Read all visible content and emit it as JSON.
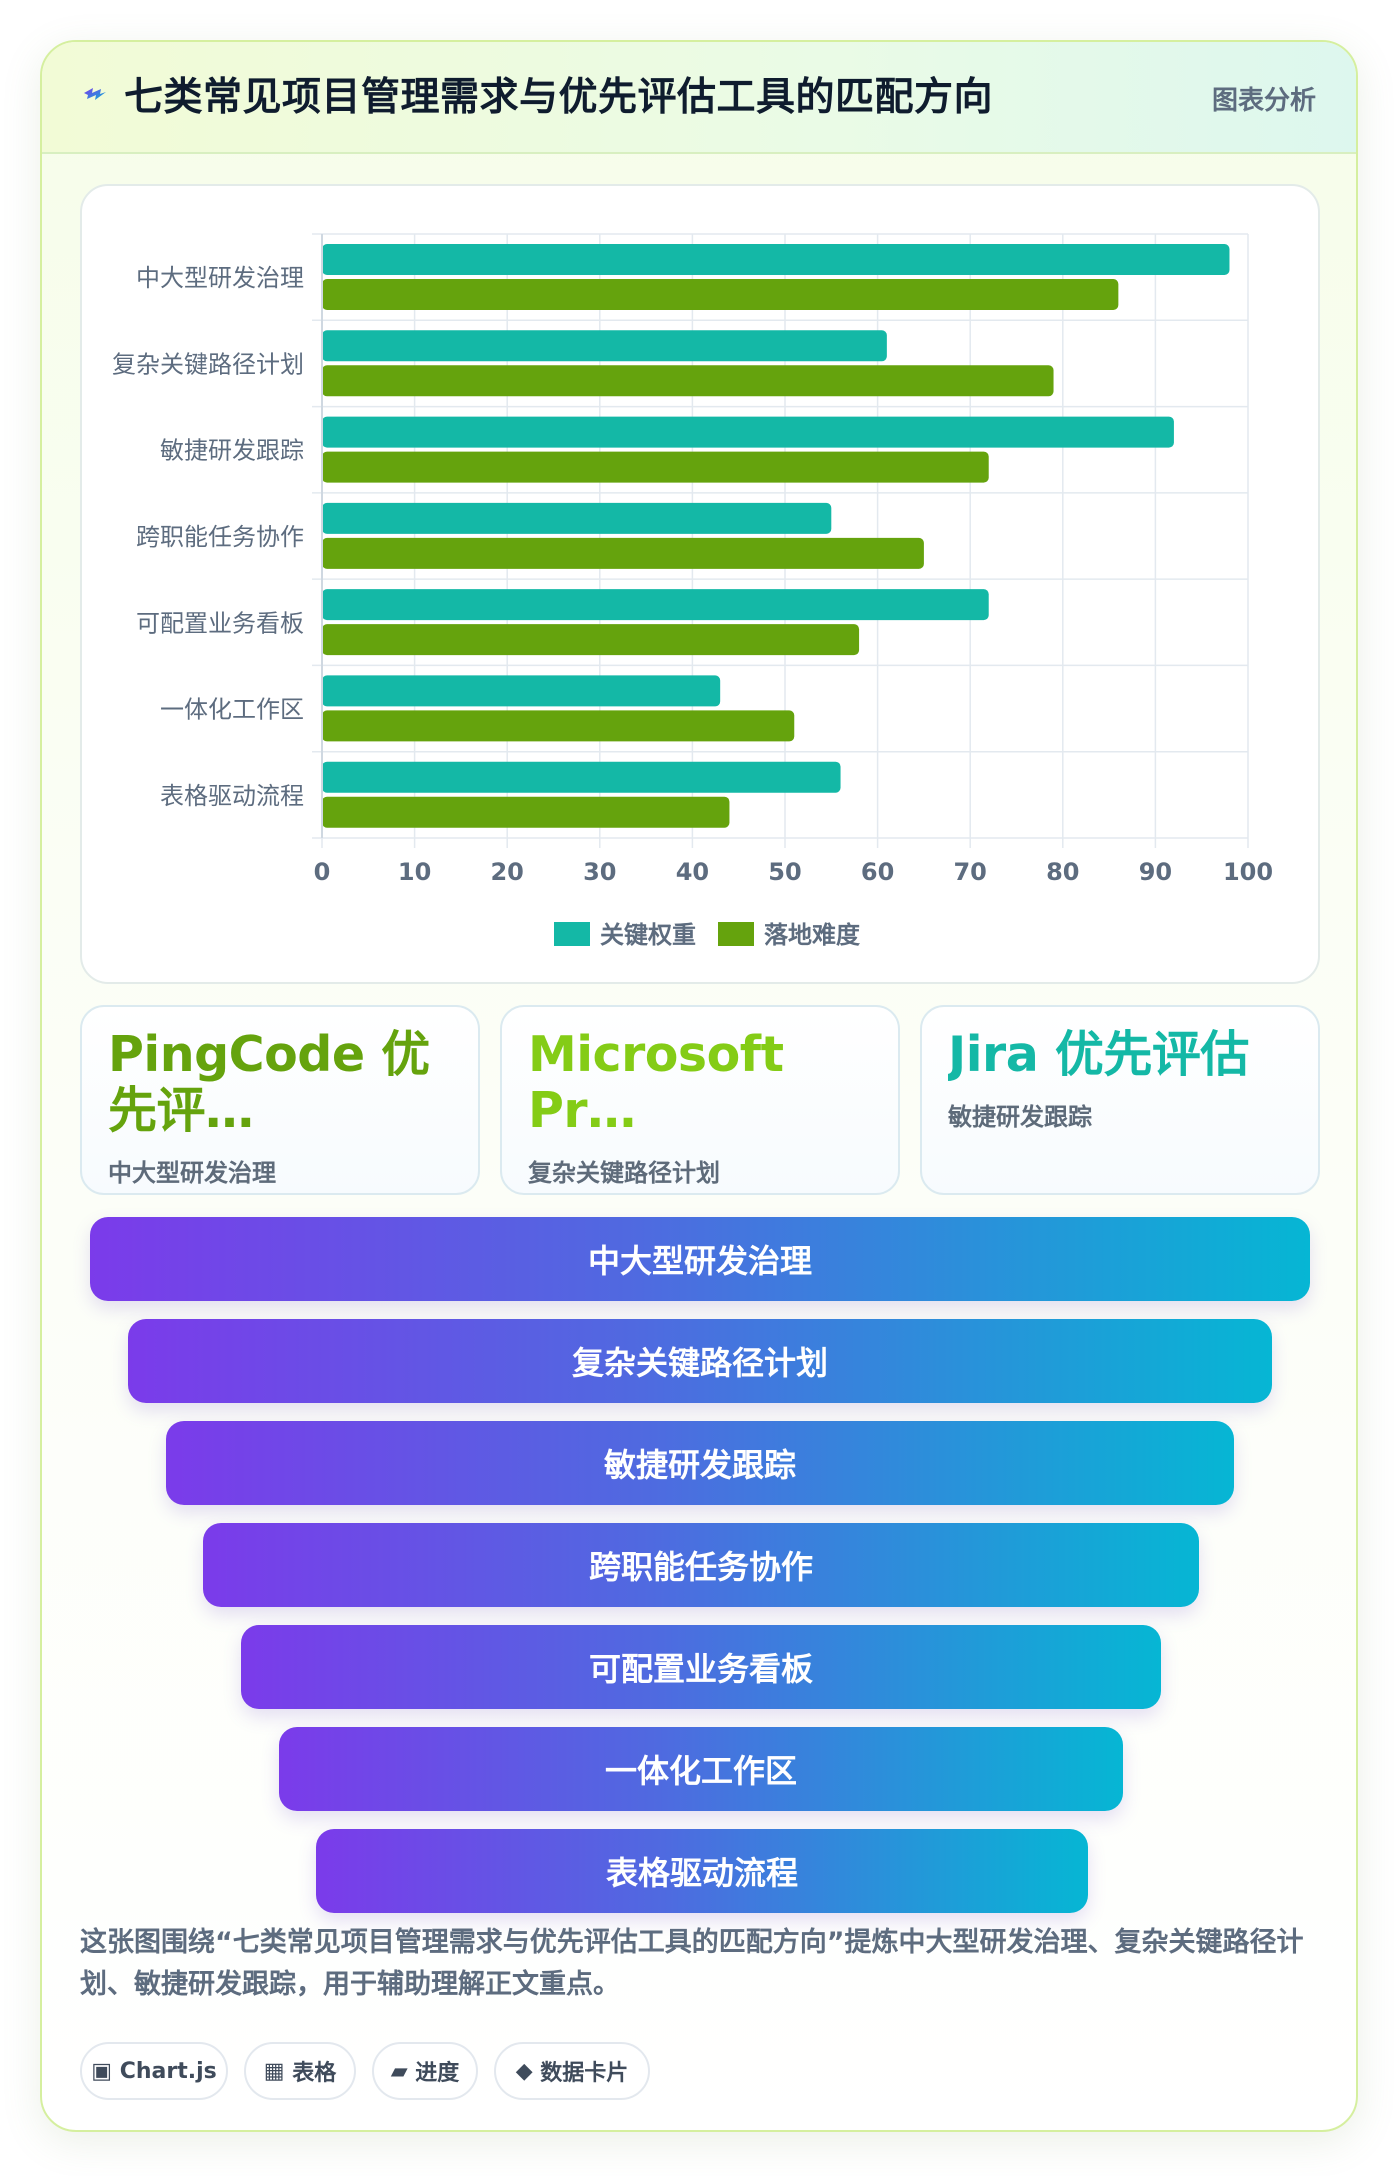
{
  "header": {
    "title": "七类常见项目管理需求与优先评估工具的匹配方向",
    "badge": "图表分析",
    "icon": "lightning-icon"
  },
  "colors": {
    "series_weight": "#14b8a6",
    "series_difficulty": "#65a30d",
    "funnel_start": "#7c3aed",
    "funnel_end": "#06b6d4"
  },
  "chart_data": {
    "type": "bar",
    "orientation": "horizontal",
    "categories": [
      "中大型研发治理",
      "复杂关键路径计划",
      "敏捷研发跟踪",
      "跨职能任务协作",
      "可配置业务看板",
      "一体化工作区",
      "表格驱动流程"
    ],
    "series": [
      {
        "name": "关键权重",
        "values": [
          98,
          61,
          92,
          55,
          72,
          43,
          56
        ],
        "color": "#14b8a6"
      },
      {
        "name": "落地难度",
        "values": [
          86,
          79,
          72,
          65,
          58,
          51,
          44
        ],
        "color": "#65a30d"
      }
    ],
    "xlim": [
      0,
      100
    ],
    "xticks": [
      0,
      10,
      20,
      30,
      40,
      50,
      60,
      70,
      80,
      90,
      100
    ],
    "grid": true,
    "legend_position": "bottom"
  },
  "stat_cards": [
    {
      "value": "PingCode 优先评…",
      "label": "中大型研发治理",
      "color": "#65a30d"
    },
    {
      "value": "Microsoft Pr…",
      "label": "复杂关键路径计划",
      "color": "#84cc16"
    },
    {
      "value": "Jira 优先评估",
      "label": "敏捷研发跟踪",
      "color": "#14b8a6"
    }
  ],
  "funnel": [
    "中大型研发治理",
    "复杂关键路径计划",
    "敏捷研发跟踪",
    "跨职能任务协作",
    "可配置业务看板",
    "一体化工作区",
    "表格驱动流程"
  ],
  "description": "这张图围绕“七类常见项目管理需求与优先评估工具的匹配方向”提炼中大型研发治理、复杂关键路径计划、敏捷研发跟踪，用于辅助理解正文重点。",
  "tags": [
    {
      "icon": "▣",
      "label": "Chart.js"
    },
    {
      "icon": "▦",
      "label": "表格"
    },
    {
      "icon": "▰",
      "label": "进度"
    },
    {
      "icon": "◆",
      "label": "数据卡片"
    }
  ]
}
